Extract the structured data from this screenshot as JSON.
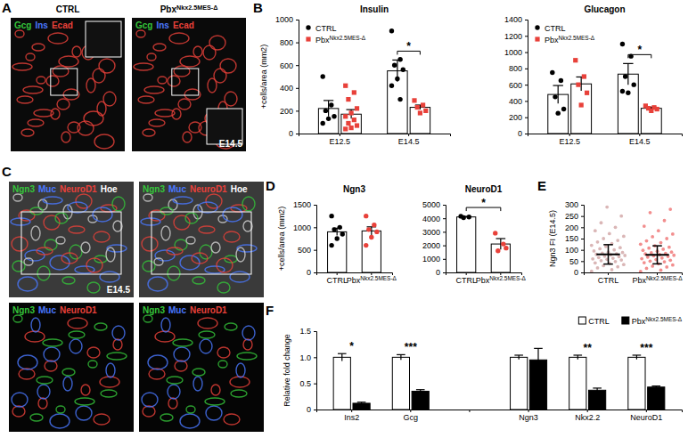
{
  "images": {
    "A": {
      "panel_label": "A",
      "columns": [
        "CTRL",
        "PbxNkx2.5MES-Δ"
      ],
      "stains": [
        {
          "text": "Gcg",
          "color": "#35c43a"
        },
        {
          "text": "Ins",
          "color": "#4a78ff"
        },
        {
          "text": "Ecad",
          "color": "#e8413a"
        }
      ],
      "stage": "E14.5"
    },
    "C": {
      "panel_label": "C",
      "stains": [
        {
          "text": "Ngn3",
          "color": "#35c43a"
        },
        {
          "text": "Muc",
          "color": "#4a78ff"
        },
        {
          "text": "NeuroD1",
          "color": "#e8413a"
        },
        {
          "text": "Hoe",
          "color": "#ffffff"
        }
      ],
      "zoom_stains": [
        {
          "text": "Ngn3",
          "color": "#35c43a"
        },
        {
          "text": "Muc",
          "color": "#4a78ff"
        },
        {
          "text": "NeuroD1",
          "color": "#e8413a"
        }
      ],
      "stage": "E14.5"
    }
  },
  "chart_data": [
    {
      "type": "bar",
      "panel_label": "B",
      "title": "Insulin",
      "y_label": "+cells/area (mm2)",
      "categories": [
        "E12.5",
        "E14.5"
      ],
      "legend": "upper left",
      "ylim": [
        0,
        1000
      ],
      "yticks": [
        0,
        200,
        400,
        600,
        800,
        1000
      ],
      "series": [
        {
          "name": "CTRL",
          "color": "#000000",
          "marker": "circle",
          "values": [
            220,
            550
          ],
          "errors": [
            70,
            95
          ],
          "points": [
            [
              500,
              250,
              200,
              150,
              130,
              90
            ],
            [
              900,
              650,
              600,
              560,
              480,
              420,
              300
            ]
          ]
        },
        {
          "name": "PbxNkx2.5MES-Δ",
          "color": "#e8413a",
          "marker": "square",
          "values": [
            170,
            230
          ],
          "errors": [
            40,
            20
          ],
          "points": [
            [
              420,
              360,
              300,
              220,
              180,
              150,
              120,
              90,
              70,
              50,
              40
            ],
            [
              290,
              250,
              230,
              200,
              180
            ]
          ]
        }
      ],
      "annotations": [
        null,
        "*"
      ]
    },
    {
      "type": "bar",
      "title": "Glucagon",
      "categories": [
        "E12.5",
        "E14.5"
      ],
      "legend": "upper left",
      "ylim": [
        0,
        1400
      ],
      "yticks": [
        0,
        200,
        400,
        600,
        800,
        1000,
        1200,
        1400
      ],
      "series": [
        {
          "name": "CTRL",
          "color": "#000000",
          "marker": "circle",
          "values": [
            480,
            730
          ],
          "errors": [
            110,
            130
          ],
          "points": [
            [
              750,
              650,
              450,
              300,
              250
            ],
            [
              1100,
              950,
              700,
              600,
              500,
              520
            ]
          ]
        },
        {
          "name": "PbxNkx2.5MES-Δ",
          "color": "#e8413a",
          "marker": "square",
          "values": [
            610,
            310
          ],
          "errors": [
            85,
            15
          ],
          "points": [
            [
              900,
              700,
              600,
              500,
              350
            ],
            [
              340,
              320,
              310,
              300,
              280
            ]
          ]
        }
      ],
      "annotations": [
        null,
        "*"
      ]
    },
    {
      "type": "bar",
      "panel_label": "D",
      "title": "Ngn3",
      "y_label": "+cells/area (mm2)",
      "categories": [
        "CTRL",
        "PbxNkx2.5MES-Δ"
      ],
      "colors": [
        "#000000",
        "#e8413a"
      ],
      "ylim": [
        0,
        1500
      ],
      "yticks": [
        0,
        500,
        1000,
        1500
      ],
      "values": [
        900,
        920
      ],
      "errors": [
        80,
        90
      ],
      "points": [
        [
          1250,
          1000,
          950,
          850,
          750,
          600
        ],
        [
          1250,
          1050,
          950,
          900,
          780,
          600
        ]
      ]
    },
    {
      "type": "bar",
      "title": "NeuroD1",
      "categories": [
        "CTRL",
        "PbxNkx2.5MES-Δ"
      ],
      "colors": [
        "#000000",
        "#e8413a"
      ],
      "ylim": [
        0,
        5000
      ],
      "yticks": [
        0,
        1000,
        2000,
        3000,
        4000,
        5000
      ],
      "values": [
        4100,
        2100
      ],
      "errors": [
        40,
        400
      ],
      "points": [
        [
          4150,
          4100,
          4050
        ],
        [
          2900,
          2100,
          1600,
          1800
        ]
      ],
      "annotations": [
        "*"
      ]
    },
    {
      "type": "dot",
      "panel_label": "E",
      "y_label": "Ngn3 FI (E14.5)",
      "categories": [
        "CTRL",
        "PbxNkx2.5MES-Δ"
      ],
      "colors": [
        "#d3a9a9",
        "#f07a7a"
      ],
      "ylim": [
        0,
        300
      ],
      "yticks": [
        0,
        50,
        100,
        150,
        200,
        250,
        300
      ],
      "values": [
        80,
        78
      ],
      "errors": [
        43,
        40
      ],
      "points": [
        [
          5,
          12,
          20,
          25,
          30,
          35,
          40,
          42,
          48,
          52,
          55,
          58,
          60,
          63,
          66,
          70,
          72,
          75,
          78,
          80,
          82,
          85,
          88,
          90,
          95,
          100,
          105,
          110,
          115,
          120,
          128,
          135,
          142,
          150,
          160,
          172,
          185,
          200,
          220,
          250,
          290
        ],
        [
          4,
          10,
          18,
          24,
          28,
          33,
          38,
          43,
          47,
          50,
          54,
          57,
          61,
          64,
          68,
          71,
          74,
          76,
          79,
          82,
          84,
          87,
          90,
          94,
          98,
          103,
          108,
          112,
          118,
          125,
          132,
          140,
          150,
          158,
          170,
          185,
          205,
          230,
          265,
          280
        ]
      ]
    },
    {
      "type": "bar",
      "panel_label": "F",
      "y_label": "Relative fold change",
      "categories": [
        "Ins2",
        "Gcg",
        null,
        "Ngn3",
        "Nkx2.2",
        "NeuroD1"
      ],
      "legend": "top",
      "ylim": [
        0,
        1.5
      ],
      "yticks": [
        0,
        0.5,
        {
          "value": 1,
          "label": "1.0"
        },
        1.5
      ],
      "series": [
        {
          "name": "CTRL",
          "color": "#ffffff",
          "values": [
            1,
            1,
            null,
            1,
            1,
            1
          ],
          "errors": [
            0.07,
            0.05,
            null,
            0.04,
            0.04,
            0.04
          ]
        },
        {
          "name": "PbxNkx2.5MES-Δ",
          "color": "#000000",
          "values": [
            0.12,
            0.35,
            null,
            0.95,
            0.37,
            0.43
          ],
          "errors": [
            0.02,
            0.03,
            null,
            0.22,
            0.04,
            0.02
          ]
        }
      ],
      "annotations": [
        "*",
        "***",
        null,
        null,
        "**",
        "***"
      ]
    }
  ]
}
